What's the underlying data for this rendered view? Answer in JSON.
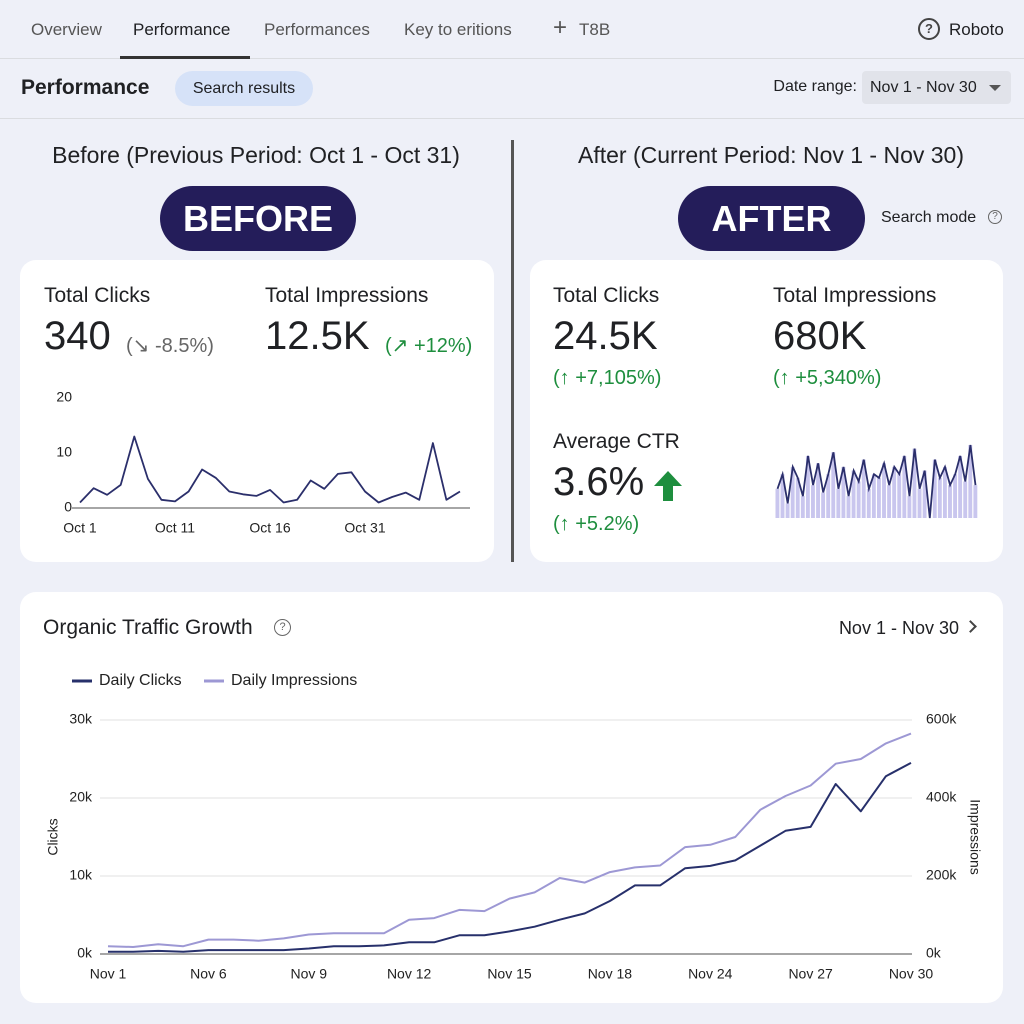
{
  "nav": {
    "tabs": [
      "Overview",
      "Performance",
      "Performances",
      "Key to eritions",
      "T8B"
    ],
    "active": 1,
    "help": "Roboto"
  },
  "toolbar": {
    "title": "Performance",
    "chip": "Search results",
    "date_label": "Date range:",
    "date_value": "Nov 1 - Nov 30"
  },
  "before": {
    "heading": "Before (Previous Period: Oct 1 - Oct 31)",
    "badge": "BEFORE",
    "metrics": [
      {
        "label": "Total Clicks",
        "value": "340",
        "change": "(↘ -8.5%)",
        "color": "#666666"
      },
      {
        "label": "Total Impressions",
        "value": "12.5K",
        "change": "(↗ +12%)",
        "color": "#1e8e3e"
      }
    ],
    "chart_data": {
      "type": "line",
      "categories": [
        "Oct 1",
        null,
        null,
        null,
        null,
        null,
        null,
        "Oct 11",
        null,
        null,
        null,
        null,
        null,
        null,
        "Oct 16",
        null,
        null,
        null,
        null,
        null,
        null,
        "Oct 31",
        null,
        null,
        null,
        null,
        null,
        null,
        null
      ],
      "values": [
        1,
        3.6,
        2.4,
        4.2,
        13,
        5.3,
        1.5,
        1.2,
        3,
        7,
        5.5,
        3,
        2.5,
        2.2,
        3.3,
        1,
        1.5,
        5,
        3.5,
        6.2,
        6.5,
        3,
        1,
        2,
        2.8,
        1.5,
        11.8,
        1.5,
        3
      ],
      "color": "#2b2f6b",
      "ylim": [
        0,
        20
      ],
      "yticks": [
        0,
        10,
        20
      ],
      "grid": false
    }
  },
  "after": {
    "heading": "After (Current Period: Nov 1 - Nov 30)",
    "badge": "AFTER",
    "mode": "Search mode",
    "metrics": [
      {
        "label": "Total Clicks",
        "value": "24.5K",
        "change": "(↑ +7,105%)",
        "color": "#1e8e3e"
      },
      {
        "label": "Total Impressions",
        "value": "680K",
        "change": "(↑ +5,340%)",
        "color": "#1e8e3e"
      },
      {
        "label": "Average CTR",
        "value": "3.6%",
        "change": "(↑ +5.2%)",
        "color": "#1e8e3e"
      }
    ],
    "chart_data": {
      "type": "sparkline",
      "values": [
        40,
        60,
        20,
        70,
        55,
        30,
        85,
        45,
        75,
        35,
        60,
        90,
        40,
        70,
        30,
        65,
        50,
        80,
        40,
        60,
        55,
        75,
        45,
        70,
        60,
        85,
        30,
        95,
        40,
        65,
        0,
        80,
        55,
        70,
        45,
        60,
        85,
        50,
        100,
        45
      ],
      "color": "#2b2f6b",
      "fill": "#c9c6ee",
      "ylim": [
        0,
        100
      ]
    }
  },
  "traffic": {
    "title": "Organic Traffic Growth",
    "range": "Nov 1 - Nov 30",
    "chart_data": {
      "type": "line",
      "categories": [
        "Nov 1",
        null,
        null,
        null,
        "Nov 6",
        null,
        null,
        null,
        "Nov 9",
        null,
        null,
        null,
        "Nov 12",
        null,
        null,
        null,
        "Nov 15",
        null,
        null,
        null,
        "Nov 18",
        null,
        null,
        null,
        "Nov 24",
        null,
        null,
        null,
        "Nov 27",
        null,
        null,
        null,
        "Nov 30"
      ],
      "series": [
        {
          "name": "Daily Clicks",
          "color": "#27306b",
          "values": [
            300,
            300,
            400,
            300,
            500,
            500,
            500,
            500,
            700,
            1000,
            1000,
            1100,
            1500,
            1500,
            2400,
            2400,
            2900,
            3500,
            4400,
            5200,
            6800,
            8800,
            8800,
            11000,
            11300,
            12000,
            13900,
            15800,
            16300,
            21800,
            18300,
            22800,
            24500
          ]
        },
        {
          "name": "Daily Impressions",
          "color": "#9d98d4",
          "axis": "y2",
          "values": [
            20000,
            18000,
            25000,
            20000,
            37000,
            37000,
            34000,
            40000,
            50000,
            53000,
            53000,
            53000,
            88000,
            92000,
            113000,
            110000,
            142000,
            158000,
            195000,
            183000,
            210000,
            222000,
            227000,
            274000,
            280000,
            300000,
            370000,
            405000,
            432000,
            488000,
            500000,
            540000,
            565000
          ]
        }
      ],
      "ylim": [
        0,
        30000
      ],
      "yticks": [
        {
          "value": 0,
          "label": "0k"
        },
        {
          "value": 10000,
          "label": "10k"
        },
        {
          "value": 20000,
          "label": "20k"
        },
        {
          "value": 30000,
          "label": "30k"
        }
      ],
      "y2lim": [
        0,
        600000
      ],
      "y2ticks": [
        {
          "value": 0,
          "label": "0k"
        },
        {
          "value": 200000,
          "label": "200k"
        },
        {
          "value": 400000,
          "label": "400k"
        },
        {
          "value": 600000,
          "label": "600k"
        }
      ],
      "ylabel": "Clicks",
      "y2label": "Impressions",
      "grid": true
    }
  }
}
